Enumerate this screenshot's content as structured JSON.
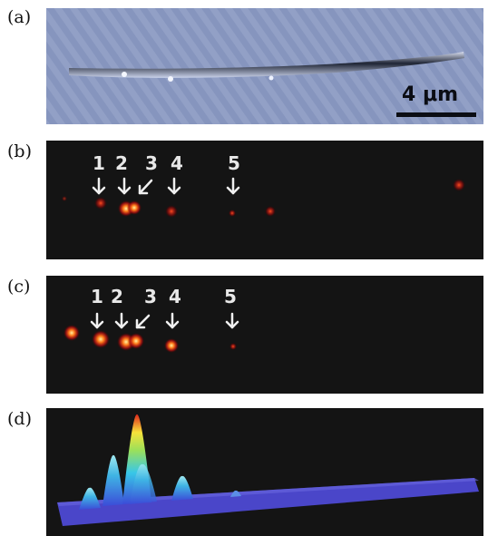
{
  "panels": {
    "a": {
      "label": "(a)",
      "scale_bar": "4 μm"
    },
    "b": {
      "label": "(b)",
      "markers": [
        "1",
        "2",
        "3",
        "4",
        "5"
      ]
    },
    "c": {
      "label": "(c)",
      "markers": [
        "1",
        "2",
        "3",
        "4",
        "5"
      ]
    },
    "d": {
      "label": "(d)"
    }
  }
}
